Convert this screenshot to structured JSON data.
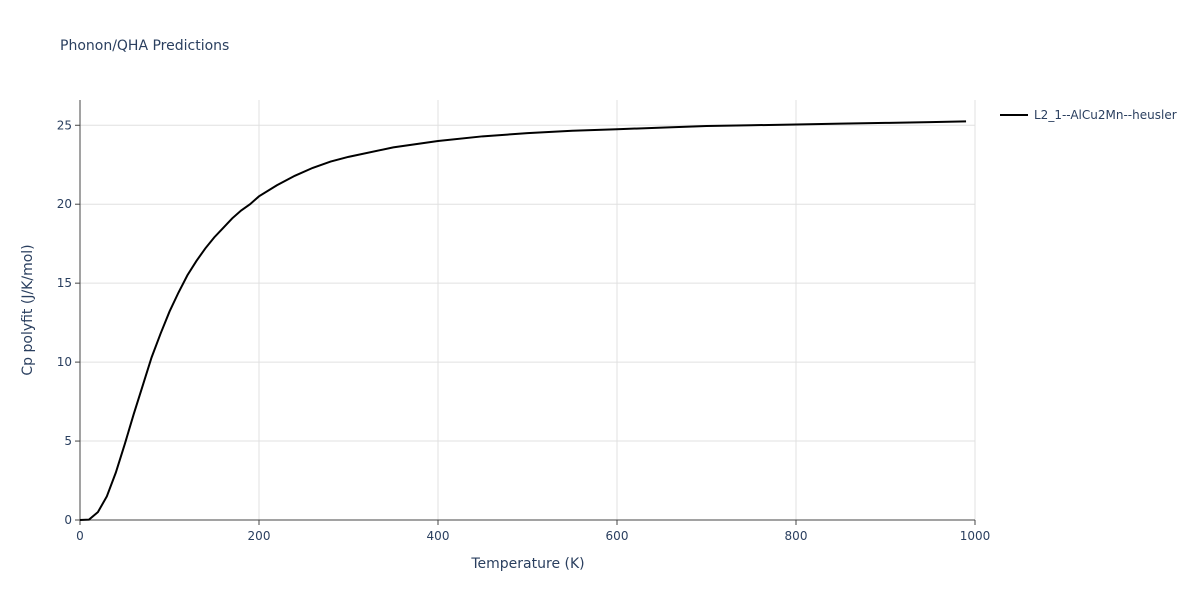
{
  "chart_data": {
    "type": "line",
    "title": "Phonon/QHA Predictions",
    "x_label": "Temperature (K)",
    "y_label": "Cp polyfit (J/K/mol)",
    "x": [
      0,
      10,
      20,
      30,
      40,
      50,
      60,
      70,
      80,
      90,
      100,
      110,
      120,
      130,
      140,
      150,
      160,
      170,
      180,
      190,
      200,
      220,
      240,
      260,
      280,
      300,
      350,
      400,
      450,
      500,
      550,
      600,
      650,
      700,
      750,
      800,
      850,
      900,
      950,
      990
    ],
    "series": [
      {
        "name": "L2_1--AlCu2Mn--heusler",
        "color": "#000000",
        "values": [
          0,
          0.02,
          0.5,
          1.5,
          3.0,
          4.8,
          6.7,
          8.5,
          10.3,
          11.8,
          13.2,
          14.4,
          15.5,
          16.4,
          17.2,
          17.9,
          18.5,
          19.1,
          19.6,
          20.0,
          20.5,
          21.2,
          21.8,
          22.3,
          22.7,
          23.0,
          23.6,
          24.0,
          24.3,
          24.5,
          24.65,
          24.75,
          24.85,
          24.95,
          25.0,
          25.05,
          25.1,
          25.15,
          25.2,
          25.25
        ]
      }
    ],
    "xlim": [
      0,
      1000
    ],
    "ylim": [
      0,
      26.6
    ],
    "xticks": [
      0,
      200,
      400,
      600,
      800,
      1000
    ],
    "yticks": [
      0,
      5,
      10,
      15,
      20,
      25
    ],
    "grid": true,
    "legend": "right"
  }
}
